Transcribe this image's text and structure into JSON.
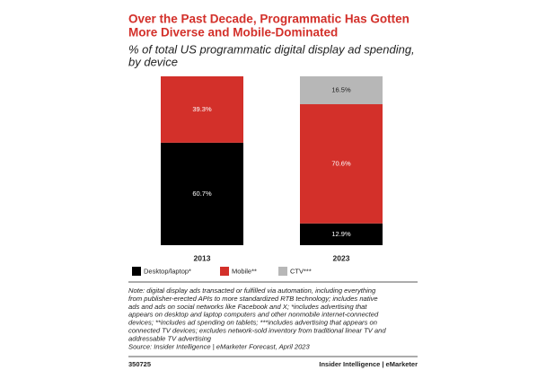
{
  "chart_data": {
    "type": "stacked-bar",
    "title": [
      "Over the Past Decade, Programmatic Has Gotten",
      "More Diverse and Mobile-Dominated"
    ],
    "subtitle": [
      "% of total US programmatic digital display ad spending,",
      "by device"
    ],
    "categories": [
      "2013",
      "2023"
    ],
    "series": [
      {
        "name": "Desktop/laptop*",
        "color": "#000000",
        "values": [
          60.7,
          12.9
        ],
        "value_labels": [
          "60.7%",
          "12.9%"
        ]
      },
      {
        "name": "Mobile**",
        "color": "#d3302a",
        "values": [
          39.3,
          70.6
        ],
        "value_labels": [
          "39.3%",
          "70.6%"
        ]
      },
      {
        "name": "CTV***",
        "color": "#b7b7b7",
        "values": [
          null,
          16.5
        ],
        "value_labels": [
          null,
          "16.5%"
        ]
      }
    ],
    "note": [
      "Note: digital display ads transacted or fulfilled via automation, including everything",
      "from publisher-erected APIs to more standardized RTB technology; includes native",
      "ads and ads on social networks like Facebook and X; *includes advertising that",
      "appears on desktop and laptop computers and other nonmobile internet-connected",
      "devices; **includes ad spending on tablets; ***includes advertising that appears on",
      "connected TV devices; excludes network-sold inventory from traditional linear TV and",
      "addressable TV advertising",
      "Source: Insider Intelligence | eMarketer Forecast, April 2023"
    ],
    "chart_id": "350725",
    "brand": "Insider Intelligence | eMarketer"
  }
}
